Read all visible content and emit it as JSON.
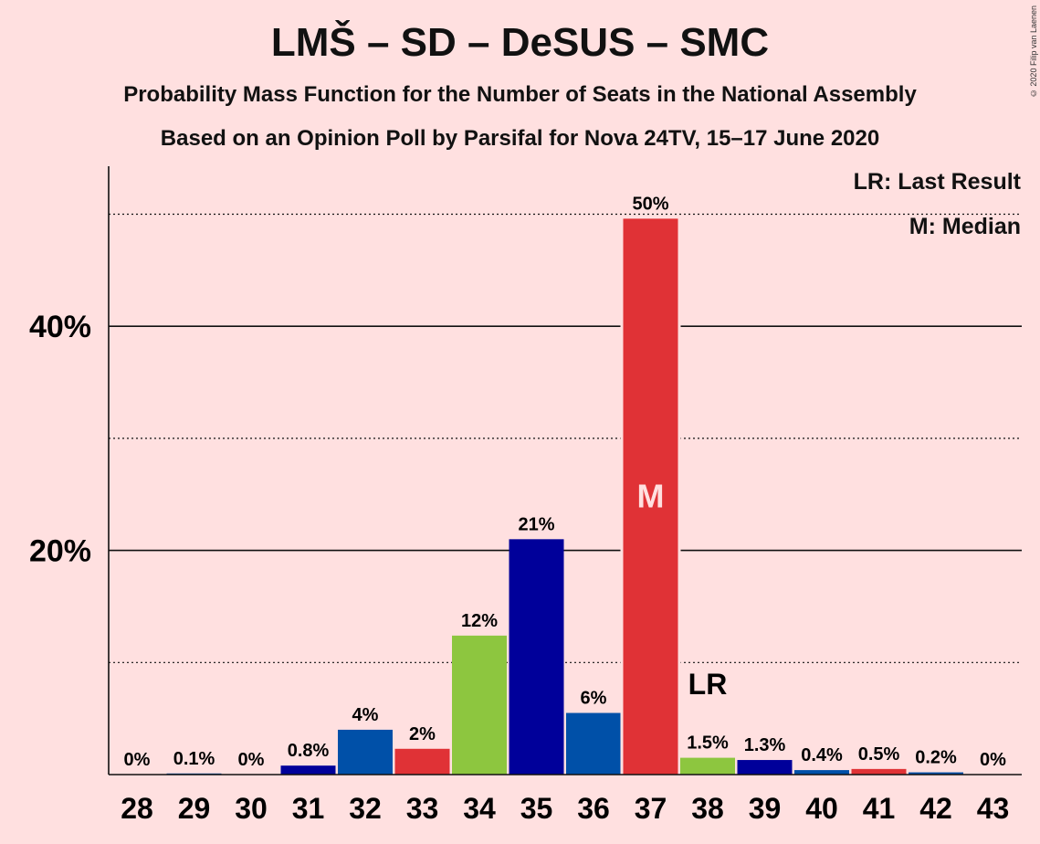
{
  "header": {
    "title": "LMŠ – SD – DeSUS – SMC",
    "subtitle1": "Probability Mass Function for the Number of Seats in the National Assembly",
    "subtitle2": "Based on an Opinion Poll by Parsifal for Nova 24TV, 15–17 June 2020",
    "copyright": "© 2020 Filip van Laenen"
  },
  "legend": {
    "lr": "LR: Last Result",
    "median": "M: Median"
  },
  "chart_data": {
    "type": "bar",
    "title": "LMŠ – SD – DeSUS – SMC",
    "xlabel": "",
    "ylabel": "",
    "ylim": [
      0,
      54
    ],
    "categories": [
      "28",
      "29",
      "30",
      "31",
      "32",
      "33",
      "34",
      "35",
      "36",
      "37",
      "38",
      "39",
      "40",
      "41",
      "42",
      "43"
    ],
    "values": [
      0,
      0.1,
      0,
      0.8,
      4,
      2.3,
      12.4,
      21,
      5.5,
      49.6,
      1.5,
      1.3,
      0.4,
      0.5,
      0.2,
      0
    ],
    "data_labels": [
      "0%",
      "0.1%",
      "0%",
      "0.8%",
      "4%",
      "2%",
      "12%",
      "21%",
      "6%",
      "50%",
      "1.5%",
      "1.3%",
      "0.4%",
      "0.5%",
      "0.2%",
      "0%"
    ],
    "bar_colors": [
      "#0050A8",
      "#0050A8",
      "#0050A8",
      "#00009A",
      "#0050A8",
      "#E03236",
      "#8DC63F",
      "#00009A",
      "#0050A8",
      "#E03236",
      "#8DC63F",
      "#00009A",
      "#0050A8",
      "#E03236",
      "#0050A8",
      "#0050A8"
    ],
    "y_ticks_major": [
      20,
      40
    ],
    "y_tick_labels": [
      "20%",
      "40%"
    ],
    "y_gridlines_minor": [
      10,
      30,
      50
    ],
    "grid": true,
    "median_category": "37",
    "median_label": "M",
    "last_result_category": "38",
    "last_result_label": "LR"
  }
}
